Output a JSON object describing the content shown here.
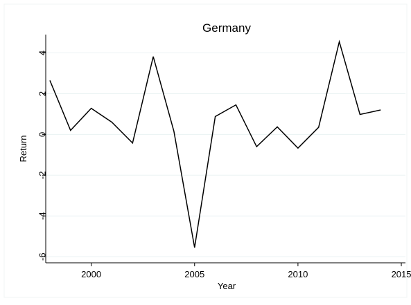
{
  "chart_data": {
    "type": "line",
    "title": "Germany",
    "xlabel": "Year",
    "ylabel": "Return",
    "xlim": [
      1997.8,
      2015.2
    ],
    "ylim": [
      -6.3,
      4.9
    ],
    "xticks": [
      2000,
      2005,
      2010,
      2015
    ],
    "yticks": [
      4,
      2,
      0,
      -2,
      -4,
      -6
    ],
    "xtick_labels": [
      "2000",
      "2005",
      "2010",
      "2015"
    ],
    "ytick_labels": [
      "4",
      "2",
      "0",
      "-2",
      "-4",
      "-6"
    ],
    "grid": true,
    "colors": {
      "line": "#000000",
      "grid": "#eaf2f3",
      "axis": "#000000"
    },
    "x": [
      1998,
      1999,
      2000,
      2001,
      2002,
      2003,
      2004,
      2005,
      2006,
      2007,
      2008,
      2009,
      2010,
      2011,
      2012,
      2013,
      2014
    ],
    "series": [
      {
        "values": [
          2.65,
          0.2,
          1.28,
          0.6,
          -0.42,
          3.82,
          0.15,
          -5.55,
          0.88,
          1.45,
          -0.6,
          0.37,
          -0.67,
          0.35,
          4.55,
          0.98,
          1.2
        ]
      }
    ]
  }
}
